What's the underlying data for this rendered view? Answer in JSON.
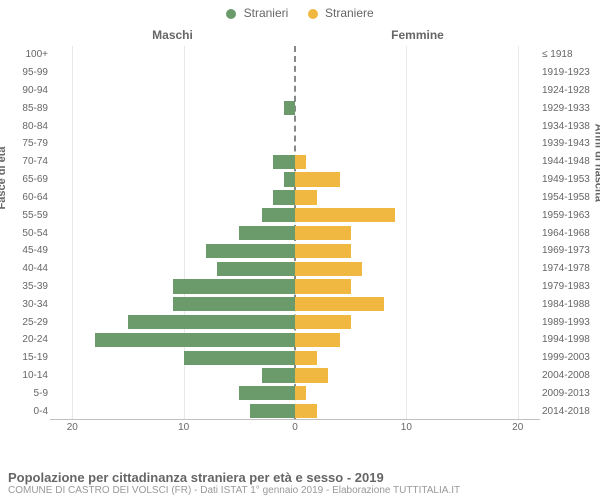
{
  "legend": {
    "male": "Stranieri",
    "female": "Straniere"
  },
  "colors": {
    "male": "#6b9b6b",
    "female": "#f0b840",
    "grid": "#e8e8e8",
    "axis": "#c0c0c0",
    "center_line": "#888888",
    "text": "#666666",
    "background": "#ffffff"
  },
  "side_labels": {
    "left": "Maschi",
    "right": "Femmine"
  },
  "axis_titles": {
    "left": "Fasce di età",
    "right": "Anni di nascita"
  },
  "x_axis": {
    "min": -22,
    "max": 22,
    "ticks": [
      -20,
      -10,
      0,
      10,
      20
    ],
    "tick_labels": [
      "20",
      "10",
      "0",
      "10",
      "20"
    ]
  },
  "age_bands": [
    {
      "age": "100+",
      "birth": "≤ 1918",
      "m": 0,
      "f": 0
    },
    {
      "age": "95-99",
      "birth": "1919-1923",
      "m": 0,
      "f": 0
    },
    {
      "age": "90-94",
      "birth": "1924-1928",
      "m": 0,
      "f": 0
    },
    {
      "age": "85-89",
      "birth": "1929-1933",
      "m": 1,
      "f": 0
    },
    {
      "age": "80-84",
      "birth": "1934-1938",
      "m": 0,
      "f": 0
    },
    {
      "age": "75-79",
      "birth": "1939-1943",
      "m": 0,
      "f": 0
    },
    {
      "age": "70-74",
      "birth": "1944-1948",
      "m": 2,
      "f": 1
    },
    {
      "age": "65-69",
      "birth": "1949-1953",
      "m": 1,
      "f": 4
    },
    {
      "age": "60-64",
      "birth": "1954-1958",
      "m": 2,
      "f": 2
    },
    {
      "age": "55-59",
      "birth": "1959-1963",
      "m": 3,
      "f": 9
    },
    {
      "age": "50-54",
      "birth": "1964-1968",
      "m": 5,
      "f": 5
    },
    {
      "age": "45-49",
      "birth": "1969-1973",
      "m": 8,
      "f": 5
    },
    {
      "age": "40-44",
      "birth": "1974-1978",
      "m": 7,
      "f": 6
    },
    {
      "age": "35-39",
      "birth": "1979-1983",
      "m": 11,
      "f": 5
    },
    {
      "age": "30-34",
      "birth": "1984-1988",
      "m": 11,
      "f": 8
    },
    {
      "age": "25-29",
      "birth": "1989-1993",
      "m": 15,
      "f": 5
    },
    {
      "age": "20-24",
      "birth": "1994-1998",
      "m": 18,
      "f": 4
    },
    {
      "age": "15-19",
      "birth": "1999-2003",
      "m": 10,
      "f": 2
    },
    {
      "age": "10-14",
      "birth": "2004-2008",
      "m": 3,
      "f": 3
    },
    {
      "age": "5-9",
      "birth": "2009-2013",
      "m": 5,
      "f": 1
    },
    {
      "age": "0-4",
      "birth": "2014-2018",
      "m": 4,
      "f": 2
    }
  ],
  "footer": {
    "title": "Popolazione per cittadinanza straniera per età e sesso - 2019",
    "subtitle": "COMUNE DI CASTRO DEI VOLSCI (FR) - Dati ISTAT 1° gennaio 2019 - Elaborazione TUTTITALIA.IT"
  }
}
